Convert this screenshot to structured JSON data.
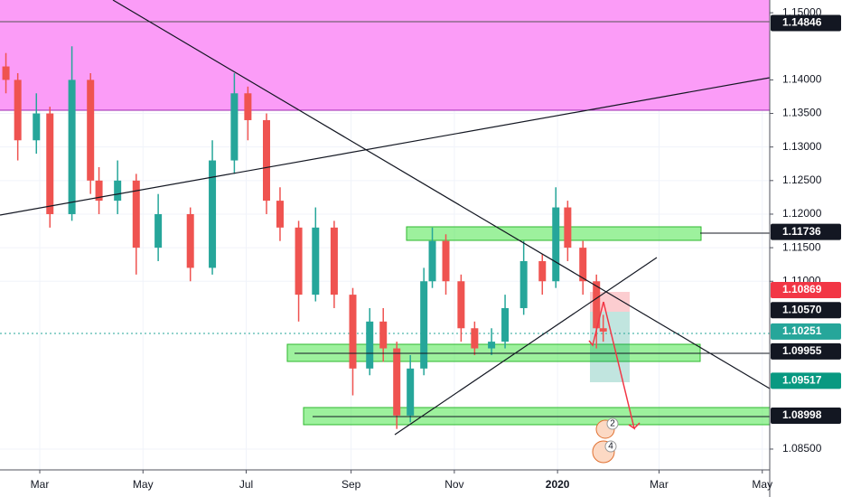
{
  "chart_data": {
    "type": "candlestick",
    "x": [
      -20,
      -13,
      -2,
      6,
      19,
      30,
      35,
      46,
      57,
      70,
      89,
      102,
      115,
      123,
      134,
      142,
      153,
      163,
      174,
      185,
      195,
      203,
      211,
      219,
      227,
      232,
      240,
      249,
      257,
      267,
      275,
      286,
      297,
      305,
      312,
      321,
      329,
      333
    ],
    "open": [
      1.142,
      1.14,
      1.131,
      1.135,
      1.12,
      1.14,
      1.125,
      1.122,
      1.125,
      1.115,
      1.12,
      1.112,
      1.128,
      1.138,
      1.134,
      1.122,
      1.118,
      1.108,
      1.118,
      1.108,
      1.097,
      1.104,
      1.1,
      1.09,
      1.097,
      1.11,
      1.116,
      1.11,
      1.103,
      1.1,
      1.101,
      1.106,
      1.113,
      1.11,
      1.121,
      1.115,
      1.11,
      1.103
    ],
    "high": [
      1.144,
      1.141,
      1.138,
      1.136,
      1.145,
      1.141,
      1.127,
      1.128,
      1.126,
      1.123,
      1.121,
      1.131,
      1.141,
      1.139,
      1.135,
      1.124,
      1.119,
      1.121,
      1.119,
      1.109,
      1.106,
      1.106,
      1.101,
      1.099,
      1.112,
      1.118,
      1.117,
      1.111,
      1.104,
      1.103,
      1.108,
      1.116,
      1.114,
      1.124,
      1.122,
      1.116,
      1.111,
      1.105
    ],
    "low": [
      1.138,
      1.128,
      1.129,
      1.118,
      1.119,
      1.123,
      1.12,
      1.12,
      1.111,
      1.113,
      1.11,
      1.111,
      1.126,
      1.131,
      1.12,
      1.116,
      1.104,
      1.107,
      1.106,
      1.093,
      1.096,
      1.098,
      1.088,
      1.089,
      1.096,
      1.109,
      1.108,
      1.101,
      1.099,
      1.099,
      1.1,
      1.105,
      1.108,
      1.109,
      1.113,
      1.108,
      1.1,
      1.101
    ],
    "close": [
      1.14,
      1.131,
      1.135,
      1.12,
      1.14,
      1.125,
      1.122,
      1.125,
      1.115,
      1.12,
      1.112,
      1.128,
      1.138,
      1.134,
      1.122,
      1.118,
      1.108,
      1.118,
      1.108,
      1.097,
      1.104,
      1.1,
      1.09,
      1.097,
      1.11,
      1.116,
      1.11,
      1.103,
      1.1,
      1.101,
      1.106,
      1.113,
      1.11,
      1.121,
      1.115,
      1.11,
      1.103,
      1.1025
    ],
    "up_color": "#26a69a",
    "down_color": "#ef5350",
    "xlim": [
      -23.5,
      431.4
    ],
    "xticks": [
      {
        "value": 0,
        "label": "Mar"
      },
      {
        "value": 61,
        "label": "May"
      },
      {
        "value": 122,
        "label": "Jul"
      },
      {
        "value": 184,
        "label": "Sep"
      },
      {
        "value": 245,
        "label": "Nov"
      },
      {
        "value": 306,
        "label": "2020"
      },
      {
        "value": 366,
        "label": "Mar"
      },
      {
        "value": 427,
        "label": "May"
      }
    ],
    "ylim": [
      1.0819,
      1.1519
    ],
    "yticks": [
      {
        "value": 1.15,
        "label": "1.15000"
      },
      {
        "value": 1.14,
        "label": "1.14000"
      },
      {
        "value": 1.135,
        "label": "1.13500"
      },
      {
        "value": 1.13,
        "label": "1.13000"
      },
      {
        "value": 1.125,
        "label": "1.12500"
      },
      {
        "value": 1.12,
        "label": "1.12000"
      },
      {
        "value": 1.115,
        "label": "1.11500"
      },
      {
        "value": 1.11,
        "label": "1.11000"
      },
      {
        "value": 1.085,
        "label": "1.08500"
      }
    ],
    "price_labels": [
      {
        "value": 1.14846,
        "label": "1.14846",
        "color": "#131722"
      },
      {
        "value": 1.11736,
        "label": "1.11736",
        "color": "#131722"
      },
      {
        "value": 1.10869,
        "label": "1.10869",
        "color": "#f23645"
      },
      {
        "value": 1.1057,
        "label": "1.10570",
        "color": "#131722"
      },
      {
        "value": 1.10251,
        "label": "1.10251",
        "color": "#26a69a"
      },
      {
        "value": 1.09955,
        "label": "1.09955",
        "color": "#131722"
      },
      {
        "value": 1.09517,
        "label": "1.09517",
        "color": "#089981"
      },
      {
        "value": 1.08998,
        "label": "1.08998",
        "color": "#131722"
      }
    ],
    "event_markers": [
      "2",
      "4"
    ],
    "grid": true
  }
}
